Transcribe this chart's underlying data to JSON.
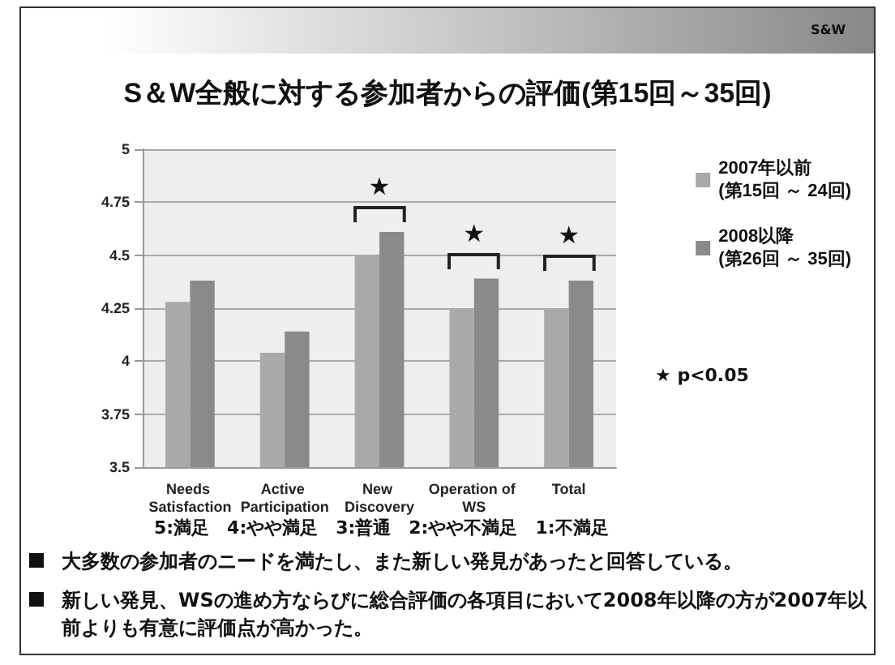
{
  "chart_data": {
    "type": "bar",
    "title": "S＆W全般に対する参加者からの評価(第15回～35回)",
    "categories": [
      "Needs Satisfaction",
      "Active Participation",
      "New Discovery",
      "Operation of WS",
      "Total"
    ],
    "series": [
      {
        "name": "2007年以前\n(第15回 ～ 24回)",
        "color": "#a9a9a9",
        "values": [
          4.28,
          4.04,
          4.5,
          4.25,
          4.25
        ]
      },
      {
        "name": "2008以降\n(第26回 ～ 35回)",
        "color": "#8a8a8a",
        "values": [
          4.38,
          4.14,
          4.61,
          4.39,
          4.38
        ]
      }
    ],
    "ylim": [
      3.5,
      5
    ],
    "yticks": [
      3.5,
      3.75,
      4,
      4.25,
      4.5,
      4.75,
      5
    ],
    "grid": "y",
    "legend": "top right",
    "annotations": [
      "S&W",
      "★ p<0.05",
      "5:満足　4:やや満足　3:普通　2:やや不満足　1:不満足",
      "大多数の参加者のニードを満たし、また新しい発見があったと回答している。",
      "新しい発見、WSの進め方ならびに総合評価の各項目において2008年以降の方が2007年以前よりも有意に評価点が高かった。",
      "★",
      "★",
      "★"
    ]
  }
}
